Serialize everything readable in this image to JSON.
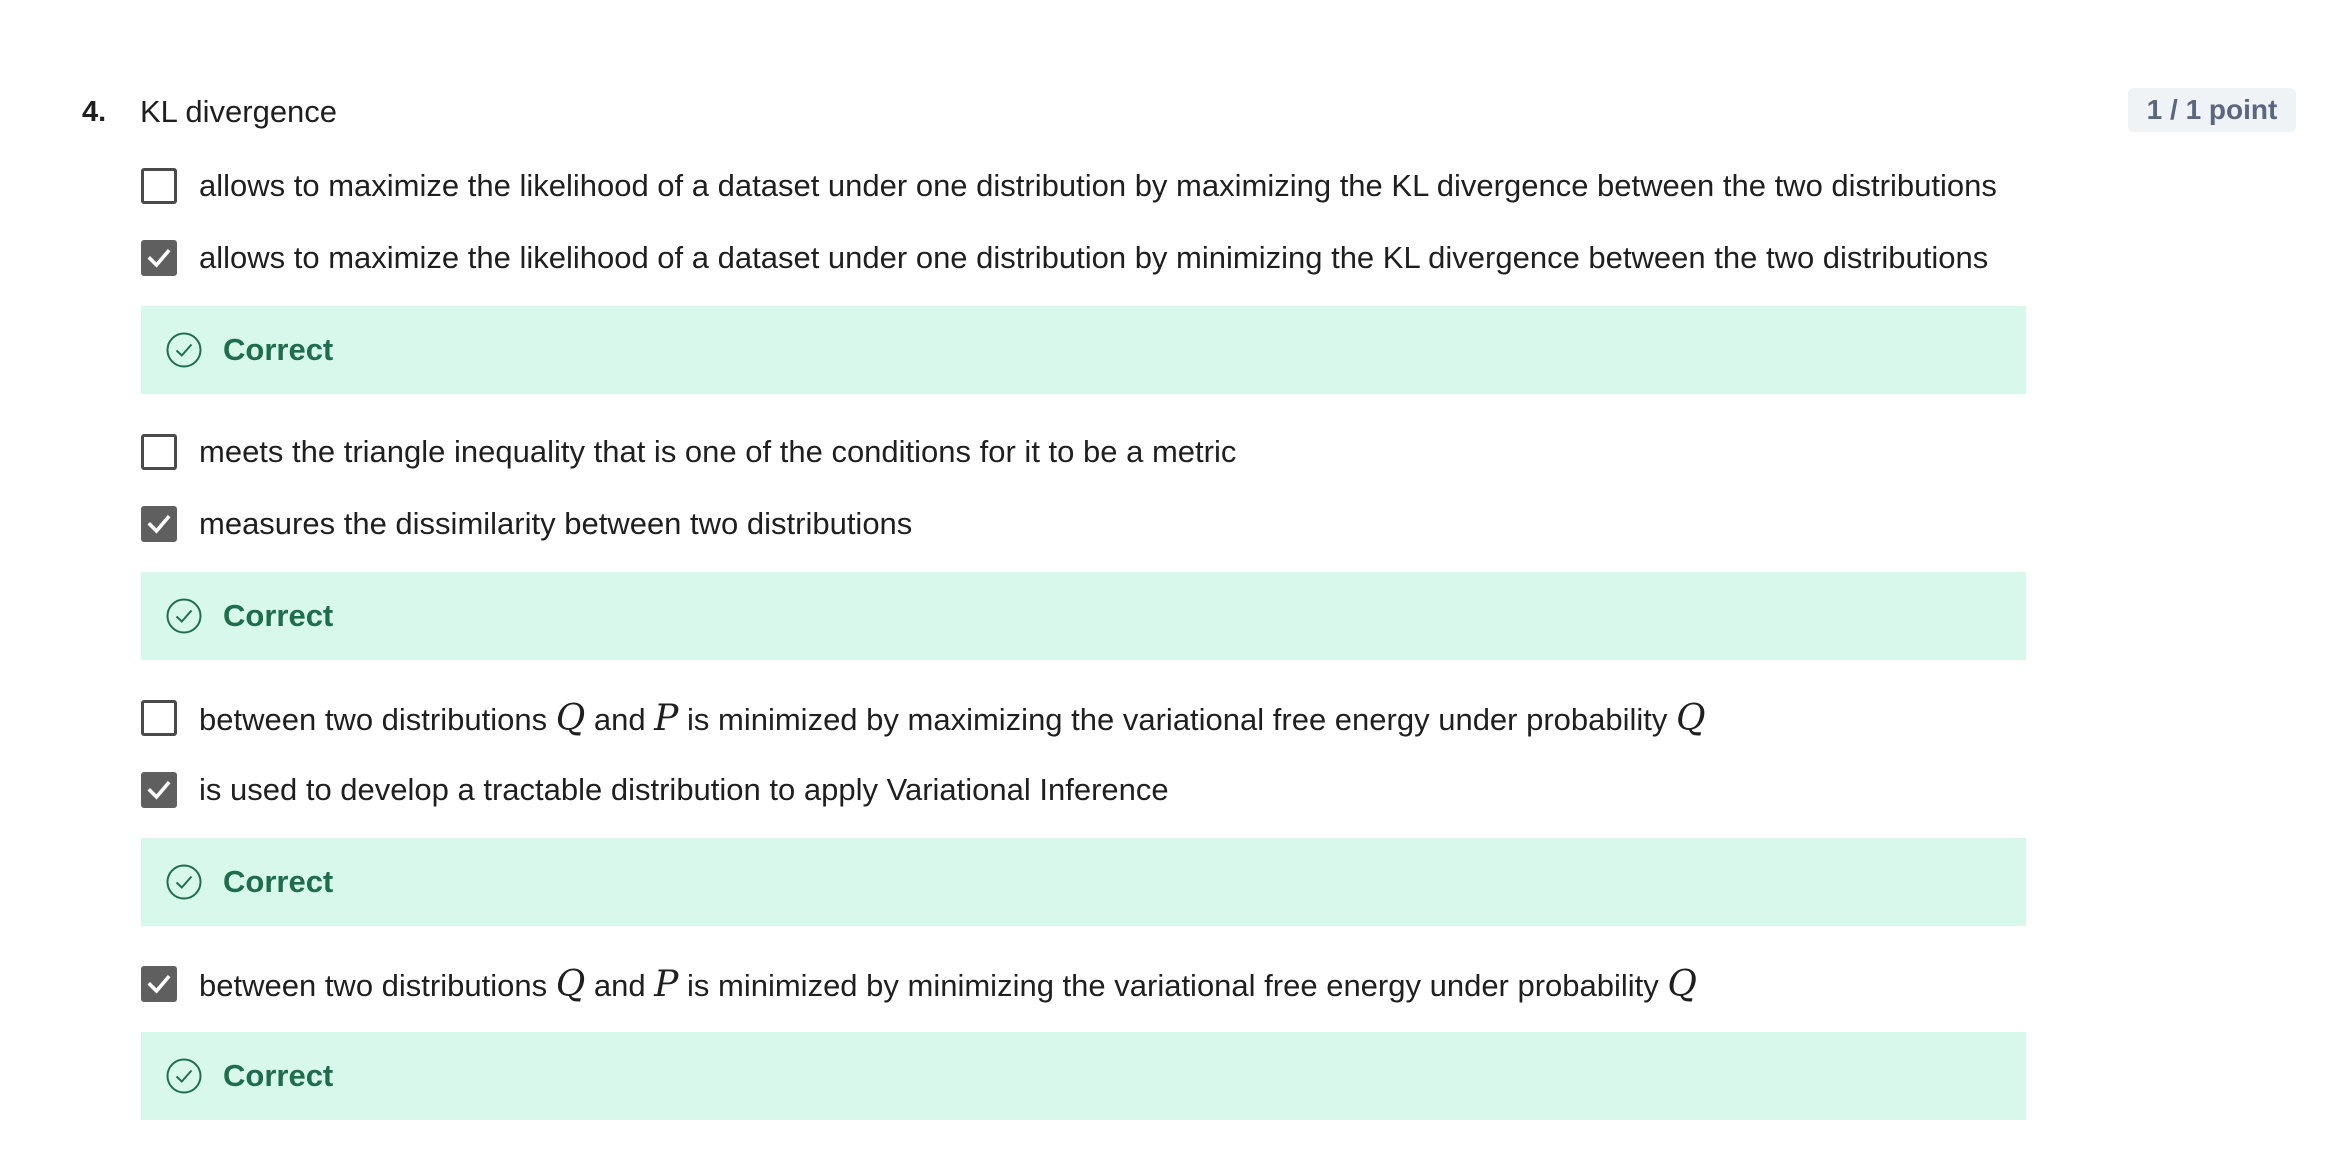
{
  "question": {
    "number": "4.",
    "title": "KL divergence",
    "points": "1 / 1 point"
  },
  "colors": {
    "feedback_bg": "#d9f8ec",
    "feedback_text": "#1e6e4e",
    "checkbox_checked": "#5f5f5f",
    "badge_bg": "#f0f3f6"
  },
  "options": [
    {
      "text": "allows to maximize the likelihood of a dataset under one distribution by maximizing the KL divergence between the two distributions",
      "checked": false
    },
    {
      "text": "allows to maximize the likelihood of a dataset under one distribution by minimizing the KL divergence between the two distributions",
      "checked": true,
      "feedback": "Correct"
    },
    {
      "text": "meets the triangle inequality that is one of the conditions for it to be a metric",
      "checked": false
    },
    {
      "text": "measures the dissimilarity between two distributions",
      "checked": true,
      "feedback": "Correct"
    },
    {
      "text_parts": [
        "between two distributions ",
        "Q",
        " and ",
        "P",
        " is minimized by maximizing the variational free energy under probability ",
        "Q"
      ],
      "checked": false
    },
    {
      "text": "is used to develop a tractable distribution to apply Variational Inference",
      "checked": true,
      "feedback": "Correct"
    },
    {
      "text_parts": [
        "between two distributions ",
        "Q",
        " and ",
        "P",
        " is minimized by minimizing the variational free energy under probability ",
        "Q"
      ],
      "checked": true,
      "feedback": "Correct"
    }
  ],
  "icons": {
    "checkbox_checked": "checkmark-icon",
    "feedback": "check-circle-icon"
  }
}
